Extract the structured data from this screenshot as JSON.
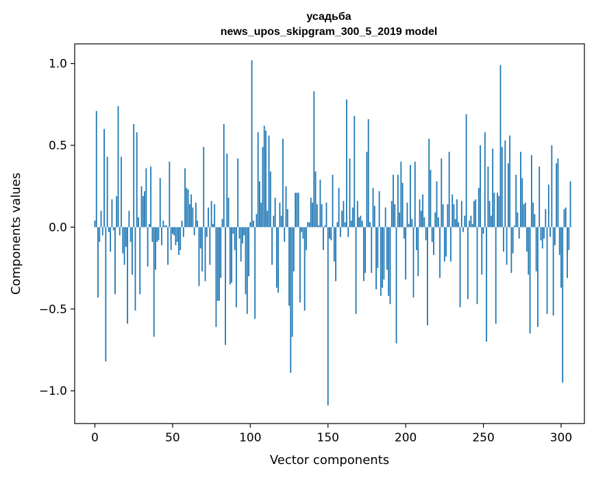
{
  "chart_data": {
    "type": "bar",
    "title": [
      "усадьба",
      "news_upos_skipgram_300_5_2019 model"
    ],
    "xlabel": "Vector components",
    "ylabel": "Components values",
    "xlim": [
      -13,
      315
    ],
    "ylim": [
      -1.2,
      1.12
    ],
    "xticks": [
      0,
      50,
      100,
      150,
      200,
      250,
      300
    ],
    "xtick_labels": [
      "0",
      "50",
      "100",
      "150",
      "200",
      "250",
      "300"
    ],
    "yticks": [
      1.0,
      0.5,
      0.0,
      -0.5,
      -1.0
    ],
    "ytick_labels": [
      "1.0",
      "0.5",
      "0.0",
      "−0.5",
      "−1.0"
    ],
    "grid": false,
    "bar_color": "#1f77b4",
    "x_start": 0,
    "values": [
      0.04,
      0.71,
      -0.43,
      -0.09,
      0.1,
      -0.05,
      0.6,
      -0.82,
      0.43,
      -0.03,
      -0.15,
      0.17,
      -0.02,
      -0.41,
      0.19,
      0.74,
      -0.05,
      0.43,
      -0.16,
      -0.23,
      -0.12,
      -0.59,
      0.1,
      -0.09,
      -0.29,
      0.63,
      -0.51,
      0.58,
      0.06,
      -0.41,
      0.25,
      0.19,
      0.22,
      0.36,
      -0.24,
      0.02,
      0.37,
      -0.09,
      -0.67,
      -0.26,
      -0.09,
      -0.08,
      0.3,
      -0.11,
      0.04,
      0.01,
      0.01,
      -0.23,
      0.4,
      -0.14,
      -0.04,
      -0.05,
      -0.11,
      -0.09,
      -0.17,
      -0.14,
      0.04,
      -0.06,
      0.36,
      0.24,
      0.23,
      0.14,
      0.2,
      0.12,
      -0.05,
      0.15,
      0.04,
      -0.36,
      -0.13,
      -0.27,
      0.49,
      -0.33,
      -0.06,
      0.12,
      -0.23,
      0.16,
      0.02,
      0.14,
      -0.61,
      -0.45,
      -0.45,
      -0.31,
      0.05,
      0.63,
      -0.72,
      0.45,
      0.18,
      -0.35,
      -0.34,
      -0.04,
      -0.14,
      -0.49,
      0.42,
      -0.07,
      -0.21,
      -0.1,
      -0.05,
      -0.41,
      -0.53,
      -0.3,
      0.03,
      1.02,
      0.04,
      -0.56,
      0.08,
      0.58,
      0.28,
      0.15,
      0.49,
      0.62,
      0.59,
      0.1,
      0.56,
      0.34,
      -0.23,
      0.07,
      0.18,
      -0.37,
      -0.4,
      0.15,
      0.07,
      0.54,
      -0.09,
      0.25,
      0.11,
      -0.48,
      -0.89,
      -0.67,
      -0.27,
      0.21,
      0.21,
      0.21,
      -0.46,
      -0.03,
      -0.07,
      -0.51,
      -0.14,
      0.03,
      0.03,
      0.18,
      0.15,
      0.83,
      0.34,
      0.14,
      0.01,
      0.29,
      0.14,
      -0.14,
      0.01,
      0.15,
      -1.09,
      -0.07,
      -0.08,
      0.32,
      -0.21,
      -0.33,
      0.03,
      0.24,
      -0.06,
      0.1,
      0.16,
      0.03,
      0.78,
      -0.06,
      0.42,
      0.04,
      0.12,
      0.68,
      -0.53,
      0.16,
      0.06,
      0.07,
      0.04,
      -0.33,
      -0.28,
      0.46,
      0.66,
      0.03,
      -0.28,
      0.24,
      0.13,
      -0.38,
      -0.25,
      0.22,
      -0.42,
      -0.37,
      -0.32,
      0.12,
      -0.26,
      -0.42,
      -0.47,
      0.16,
      0.32,
      0.14,
      -0.71,
      0.32,
      0.09,
      0.4,
      0.27,
      -0.07,
      -0.32,
      0.15,
      0.02,
      0.38,
      0.05,
      -0.43,
      0.4,
      -0.14,
      -0.3,
      0.17,
      0.1,
      0.2,
      0.06,
      -0.08,
      -0.6,
      0.54,
      0.35,
      -0.09,
      -0.17,
      0.09,
      0.28,
      0.06,
      -0.31,
      0.42,
      0.14,
      -0.21,
      -0.18,
      0.14,
      0.46,
      -0.21,
      0.2,
      0.14,
      0.05,
      0.17,
      0.03,
      -0.49,
      0.16,
      -0.03,
      0.07,
      0.69,
      -0.44,
      0.04,
      0.07,
      0.02,
      0.16,
      0.17,
      -0.47,
      0.24,
      0.5,
      -0.29,
      -0.04,
      0.58,
      -0.7,
      0.37,
      0.16,
      0.07,
      0.48,
      0.21,
      -0.59,
      0.21,
      0.19,
      0.99,
      0.49,
      -0.15,
      0.53,
      -0.23,
      0.39,
      0.56,
      -0.28,
      -0.16,
      0.01,
      0.32,
      0.09,
      -0.07,
      0.46,
      0.3,
      0.14,
      0.15,
      -0.15,
      -0.29,
      -0.65,
      0.44,
      0.15,
      0.08,
      -0.27,
      -0.61,
      0.37,
      -0.08,
      -0.13,
      -0.07,
      0.11,
      -0.53,
      0.26,
      -0.06,
      0.5,
      -0.54,
      -0.11,
      0.39,
      0.42,
      -0.17,
      -0.37,
      -0.95,
      0.11,
      0.12,
      -0.31,
      -0.14,
      0.28,
      0.0
    ]
  }
}
